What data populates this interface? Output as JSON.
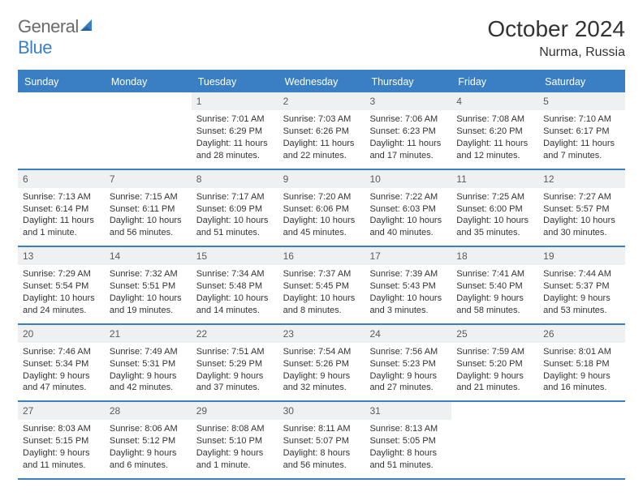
{
  "logo": {
    "word1": "General",
    "word2": "Blue"
  },
  "title": "October 2024",
  "location": "Nurma, Russia",
  "colors": {
    "accent": "#3a7fc4",
    "dow_bg": "#3a7fc4",
    "dow_text": "#ffffff",
    "daynum_bg": "#eef0f2",
    "border": "#3a7fc4",
    "text": "#333333",
    "logo_gray": "#6a6a6a"
  },
  "typography": {
    "title_fontsize": 28,
    "location_fontsize": 16,
    "dow_fontsize": 12.5,
    "cell_fontsize": 11,
    "daynum_fontsize": 12
  },
  "dow": [
    "Sunday",
    "Monday",
    "Tuesday",
    "Wednesday",
    "Thursday",
    "Friday",
    "Saturday"
  ],
  "weeks": [
    [
      {
        "n": "",
        "sr": "",
        "ss": "",
        "dl": ""
      },
      {
        "n": "",
        "sr": "",
        "ss": "",
        "dl": ""
      },
      {
        "n": "1",
        "sr": "Sunrise: 7:01 AM",
        "ss": "Sunset: 6:29 PM",
        "dl": "Daylight: 11 hours and 28 minutes."
      },
      {
        "n": "2",
        "sr": "Sunrise: 7:03 AM",
        "ss": "Sunset: 6:26 PM",
        "dl": "Daylight: 11 hours and 22 minutes."
      },
      {
        "n": "3",
        "sr": "Sunrise: 7:06 AM",
        "ss": "Sunset: 6:23 PM",
        "dl": "Daylight: 11 hours and 17 minutes."
      },
      {
        "n": "4",
        "sr": "Sunrise: 7:08 AM",
        "ss": "Sunset: 6:20 PM",
        "dl": "Daylight: 11 hours and 12 minutes."
      },
      {
        "n": "5",
        "sr": "Sunrise: 7:10 AM",
        "ss": "Sunset: 6:17 PM",
        "dl": "Daylight: 11 hours and 7 minutes."
      }
    ],
    [
      {
        "n": "6",
        "sr": "Sunrise: 7:13 AM",
        "ss": "Sunset: 6:14 PM",
        "dl": "Daylight: 11 hours and 1 minute."
      },
      {
        "n": "7",
        "sr": "Sunrise: 7:15 AM",
        "ss": "Sunset: 6:11 PM",
        "dl": "Daylight: 10 hours and 56 minutes."
      },
      {
        "n": "8",
        "sr": "Sunrise: 7:17 AM",
        "ss": "Sunset: 6:09 PM",
        "dl": "Daylight: 10 hours and 51 minutes."
      },
      {
        "n": "9",
        "sr": "Sunrise: 7:20 AM",
        "ss": "Sunset: 6:06 PM",
        "dl": "Daylight: 10 hours and 45 minutes."
      },
      {
        "n": "10",
        "sr": "Sunrise: 7:22 AM",
        "ss": "Sunset: 6:03 PM",
        "dl": "Daylight: 10 hours and 40 minutes."
      },
      {
        "n": "11",
        "sr": "Sunrise: 7:25 AM",
        "ss": "Sunset: 6:00 PM",
        "dl": "Daylight: 10 hours and 35 minutes."
      },
      {
        "n": "12",
        "sr": "Sunrise: 7:27 AM",
        "ss": "Sunset: 5:57 PM",
        "dl": "Daylight: 10 hours and 30 minutes."
      }
    ],
    [
      {
        "n": "13",
        "sr": "Sunrise: 7:29 AM",
        "ss": "Sunset: 5:54 PM",
        "dl": "Daylight: 10 hours and 24 minutes."
      },
      {
        "n": "14",
        "sr": "Sunrise: 7:32 AM",
        "ss": "Sunset: 5:51 PM",
        "dl": "Daylight: 10 hours and 19 minutes."
      },
      {
        "n": "15",
        "sr": "Sunrise: 7:34 AM",
        "ss": "Sunset: 5:48 PM",
        "dl": "Daylight: 10 hours and 14 minutes."
      },
      {
        "n": "16",
        "sr": "Sunrise: 7:37 AM",
        "ss": "Sunset: 5:45 PM",
        "dl": "Daylight: 10 hours and 8 minutes."
      },
      {
        "n": "17",
        "sr": "Sunrise: 7:39 AM",
        "ss": "Sunset: 5:43 PM",
        "dl": "Daylight: 10 hours and 3 minutes."
      },
      {
        "n": "18",
        "sr": "Sunrise: 7:41 AM",
        "ss": "Sunset: 5:40 PM",
        "dl": "Daylight: 9 hours and 58 minutes."
      },
      {
        "n": "19",
        "sr": "Sunrise: 7:44 AM",
        "ss": "Sunset: 5:37 PM",
        "dl": "Daylight: 9 hours and 53 minutes."
      }
    ],
    [
      {
        "n": "20",
        "sr": "Sunrise: 7:46 AM",
        "ss": "Sunset: 5:34 PM",
        "dl": "Daylight: 9 hours and 47 minutes."
      },
      {
        "n": "21",
        "sr": "Sunrise: 7:49 AM",
        "ss": "Sunset: 5:31 PM",
        "dl": "Daylight: 9 hours and 42 minutes."
      },
      {
        "n": "22",
        "sr": "Sunrise: 7:51 AM",
        "ss": "Sunset: 5:29 PM",
        "dl": "Daylight: 9 hours and 37 minutes."
      },
      {
        "n": "23",
        "sr": "Sunrise: 7:54 AM",
        "ss": "Sunset: 5:26 PM",
        "dl": "Daylight: 9 hours and 32 minutes."
      },
      {
        "n": "24",
        "sr": "Sunrise: 7:56 AM",
        "ss": "Sunset: 5:23 PM",
        "dl": "Daylight: 9 hours and 27 minutes."
      },
      {
        "n": "25",
        "sr": "Sunrise: 7:59 AM",
        "ss": "Sunset: 5:20 PM",
        "dl": "Daylight: 9 hours and 21 minutes."
      },
      {
        "n": "26",
        "sr": "Sunrise: 8:01 AM",
        "ss": "Sunset: 5:18 PM",
        "dl": "Daylight: 9 hours and 16 minutes."
      }
    ],
    [
      {
        "n": "27",
        "sr": "Sunrise: 8:03 AM",
        "ss": "Sunset: 5:15 PM",
        "dl": "Daylight: 9 hours and 11 minutes."
      },
      {
        "n": "28",
        "sr": "Sunrise: 8:06 AM",
        "ss": "Sunset: 5:12 PM",
        "dl": "Daylight: 9 hours and 6 minutes."
      },
      {
        "n": "29",
        "sr": "Sunrise: 8:08 AM",
        "ss": "Sunset: 5:10 PM",
        "dl": "Daylight: 9 hours and 1 minute."
      },
      {
        "n": "30",
        "sr": "Sunrise: 8:11 AM",
        "ss": "Sunset: 5:07 PM",
        "dl": "Daylight: 8 hours and 56 minutes."
      },
      {
        "n": "31",
        "sr": "Sunrise: 8:13 AM",
        "ss": "Sunset: 5:05 PM",
        "dl": "Daylight: 8 hours and 51 minutes."
      },
      {
        "n": "",
        "sr": "",
        "ss": "",
        "dl": ""
      },
      {
        "n": "",
        "sr": "",
        "ss": "",
        "dl": ""
      }
    ]
  ]
}
